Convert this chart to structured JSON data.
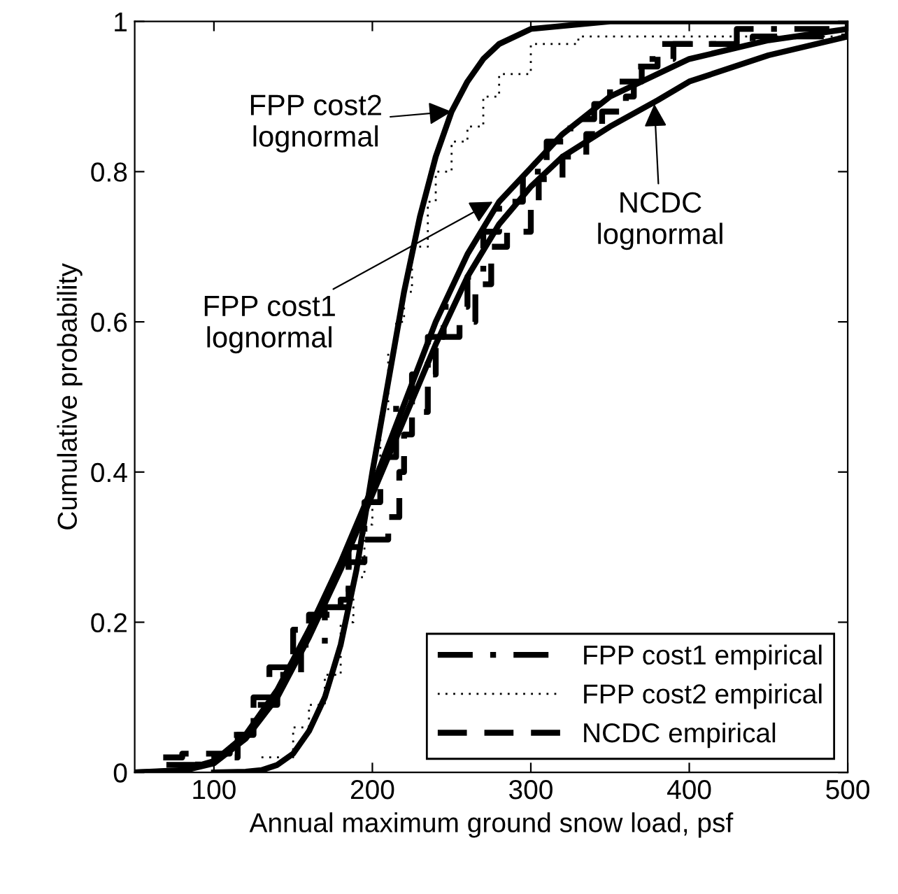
{
  "chart_data": {
    "type": "line",
    "xlabel": "Annual maximum ground snow load, psf",
    "ylabel": "Cumulative probability",
    "xlim": [
      50,
      500
    ],
    "ylim": [
      0,
      1
    ],
    "xticks": [
      100,
      200,
      300,
      400,
      500
    ],
    "yticks": [
      0,
      0.2,
      0.4,
      0.6,
      0.8,
      1
    ],
    "grid": false,
    "legend": "bottom right",
    "series": [
      {
        "type": "step",
        "name": "FPP cost1 empirical",
        "color": "#000000",
        "line_style": "dashdot",
        "x": [
          70,
          90,
          115,
          125,
          140,
          155,
          170,
          185,
          195,
          205,
          215,
          225,
          235,
          245,
          260,
          270,
          280,
          295,
          310,
          325,
          340,
          350,
          370,
          390,
          430,
          500
        ],
        "values": [
          0.01,
          0.02,
          0.05,
          0.09,
          0.13,
          0.17,
          0.22,
          0.3,
          0.36,
          0.42,
          0.49,
          0.53,
          0.58,
          0.62,
          0.66,
          0.72,
          0.76,
          0.8,
          0.84,
          0.87,
          0.89,
          0.92,
          0.95,
          0.97,
          0.99,
          1.0
        ]
      },
      {
        "type": "step",
        "name": "FPP cost2 empirical",
        "color": "#000000",
        "line_style": "dotted",
        "x": [
          130,
          150,
          160,
          170,
          180,
          188,
          195,
          200,
          205,
          210,
          215,
          220,
          225,
          235,
          240,
          250,
          260,
          270,
          280,
          300,
          330,
          500
        ],
        "values": [
          0.02,
          0.06,
          0.09,
          0.13,
          0.2,
          0.26,
          0.33,
          0.4,
          0.48,
          0.56,
          0.6,
          0.64,
          0.7,
          0.76,
          0.8,
          0.84,
          0.86,
          0.9,
          0.93,
          0.97,
          0.98,
          1.0
        ]
      },
      {
        "type": "step",
        "name": "NCDC empirical",
        "color": "#000000",
        "line_style": "dashed",
        "x": [
          68,
          80,
          110,
          125,
          135,
          150,
          160,
          180,
          185,
          195,
          210,
          217,
          220,
          225,
          235,
          240,
          255,
          265,
          275,
          285,
          300,
          305,
          320,
          335,
          345,
          360,
          365,
          380,
          440,
          500
        ],
        "values": [
          0.02,
          0.025,
          0.05,
          0.1,
          0.14,
          0.19,
          0.21,
          0.23,
          0.28,
          0.31,
          0.34,
          0.4,
          0.45,
          0.48,
          0.53,
          0.58,
          0.6,
          0.65,
          0.7,
          0.72,
          0.75,
          0.79,
          0.82,
          0.85,
          0.88,
          0.9,
          0.94,
          0.97,
          0.98,
          0.99
        ]
      },
      {
        "color": "#000000",
        "line_style": "solid",
        "x": [
          50,
          80,
          100,
          120,
          140,
          160,
          180,
          200,
          220,
          240,
          260,
          280,
          300,
          320,
          350,
          400,
          450,
          500
        ],
        "values": [
          0,
          0.003,
          0.015,
          0.05,
          0.11,
          0.19,
          0.28,
          0.38,
          0.49,
          0.6,
          0.69,
          0.76,
          0.805,
          0.85,
          0.9,
          0.95,
          0.975,
          0.99
        ]
      },
      {
        "color": "#000000",
        "line_style": "solid",
        "x": [
          100,
          120,
          130,
          140,
          150,
          160,
          170,
          180,
          190,
          200,
          210,
          220,
          230,
          240,
          250,
          260,
          270,
          280,
          300,
          350,
          500
        ],
        "values": [
          0,
          0.001,
          0.003,
          0.01,
          0.025,
          0.055,
          0.1,
          0.17,
          0.27,
          0.4,
          0.52,
          0.64,
          0.74,
          0.82,
          0.88,
          0.92,
          0.95,
          0.97,
          0.99,
          1.0,
          1.0
        ]
      },
      {
        "color": "#000000",
        "line_style": "solid",
        "x": [
          50,
          80,
          100,
          120,
          140,
          160,
          180,
          200,
          220,
          240,
          260,
          280,
          300,
          320,
          350,
          380,
          400,
          450,
          500
        ],
        "values": [
          0,
          0.002,
          0.012,
          0.045,
          0.1,
          0.18,
          0.27,
          0.37,
          0.47,
          0.57,
          0.66,
          0.73,
          0.78,
          0.82,
          0.86,
          0.895,
          0.92,
          0.955,
          0.98
        ]
      }
    ],
    "annotations": [
      {
        "text": "FPP cost2\nlognormal",
        "x": 250,
        "y": 0.88
      },
      {
        "text": "FPP cost1\nlognormal",
        "x": 276,
        "y": 0.76
      },
      {
        "text": "NCDC\nlognormal",
        "x": 378,
        "y": 0.89
      }
    ]
  }
}
